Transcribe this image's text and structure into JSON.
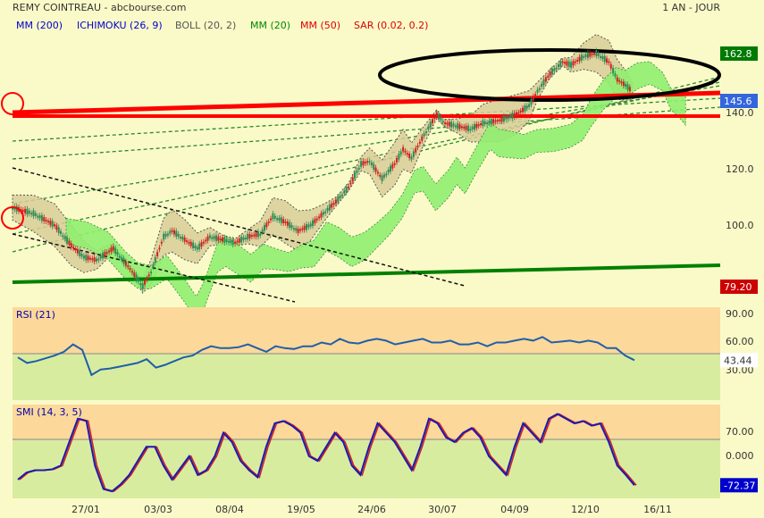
{
  "header": {
    "title": "REMY COINTREAU - abcbourse.com",
    "period": "1 AN - JOUR"
  },
  "legend": [
    {
      "label": "MM (200)",
      "color": "#0000cc"
    },
    {
      "label": "ICHIMOKU (26, 9)",
      "color": "#0000cc"
    },
    {
      "label": "BOLL (20, 2)",
      "color": "#555555"
    },
    {
      "label": "MM (20)",
      "color": "#008800"
    },
    {
      "label": "MM (50)",
      "color": "#dd0000"
    },
    {
      "label": "SAR (0.02, 0.2)",
      "color": "#dd0000"
    }
  ],
  "colors": {
    "background": "#fafac8",
    "overbought_zone": "#fcd89a",
    "oversold_zone": "#d8eca0",
    "cloud": "#90ee70",
    "bollinger_fill": "#d8cc98",
    "candle_up": "#2e8b57",
    "candle_down": "#cc2222",
    "rsi_line": "#1f5fa8",
    "smi_line": "#1a1ab0",
    "smi_signal": "#cc2222"
  },
  "chart_data": [
    {
      "type": "candlestick",
      "panel": "price",
      "ylim": [
        76,
        168
      ],
      "yticks": [
        "140.0",
        "120.0",
        "100.0"
      ],
      "x_labels": [
        "27/01",
        "03/03",
        "08/04",
        "19/05",
        "24/06",
        "30/07",
        "04/09",
        "12/10",
        "16/11"
      ],
      "price_badges": [
        {
          "value": "162.8",
          "color": "#007a00"
        },
        {
          "value": "145.6",
          "color": "#3366dd"
        },
        {
          "value": "79.20",
          "color": "#cc0000"
        }
      ],
      "close_path": [
        [
          0,
          109
        ],
        [
          10,
          107
        ],
        [
          20,
          103
        ],
        [
          28,
          96
        ],
        [
          34,
          92
        ],
        [
          40,
          91
        ],
        [
          48,
          95
        ],
        [
          56,
          88
        ],
        [
          62,
          82
        ],
        [
          66,
          87
        ],
        [
          72,
          99
        ],
        [
          76,
          101
        ],
        [
          82,
          98
        ],
        [
          88,
          95
        ],
        [
          94,
          99
        ],
        [
          100,
          98
        ],
        [
          106,
          97
        ],
        [
          112,
          99
        ],
        [
          118,
          100
        ],
        [
          124,
          106
        ],
        [
          130,
          104
        ],
        [
          136,
          101
        ],
        [
          142,
          103
        ],
        [
          148,
          107
        ],
        [
          154,
          111
        ],
        [
          160,
          116
        ],
        [
          166,
          124
        ],
        [
          170,
          125
        ],
        [
          176,
          119
        ],
        [
          182,
          124
        ],
        [
          186,
          129
        ],
        [
          190,
          126
        ],
        [
          196,
          134
        ],
        [
          202,
          141
        ],
        [
          206,
          138
        ],
        [
          212,
          137
        ],
        [
          218,
          136
        ],
        [
          224,
          138
        ],
        [
          232,
          139
        ],
        [
          240,
          141
        ],
        [
          246,
          144
        ],
        [
          250,
          149
        ],
        [
          256,
          155
        ],
        [
          262,
          159
        ],
        [
          266,
          158
        ],
        [
          272,
          161
        ],
        [
          278,
          162
        ],
        [
          284,
          159
        ],
        [
          288,
          153
        ],
        [
          292,
          151
        ],
        [
          295,
          149
        ]
      ]
    },
    {
      "type": "line",
      "panel": "rsi",
      "title": "RSI (21)",
      "ylim": [
        0,
        100
      ],
      "yticks": [
        "90.00",
        "60.00",
        "30.00"
      ],
      "last_value": "43.44",
      "values": [
        46,
        40,
        42,
        45,
        48,
        52,
        60,
        54,
        27,
        33,
        34,
        36,
        38,
        40,
        44,
        35,
        38,
        42,
        46,
        48,
        54,
        58,
        56,
        56,
        57,
        60,
        56,
        52,
        58,
        56,
        55,
        58,
        58,
        62,
        60,
        66,
        62,
        61,
        64,
        66,
        64,
        60,
        62,
        64,
        66,
        62,
        62,
        64,
        60,
        60,
        62,
        58,
        62,
        62,
        64,
        66,
        64,
        68,
        62,
        63,
        64,
        62,
        64,
        62,
        56,
        56,
        48,
        43
      ]
    },
    {
      "type": "line",
      "panel": "smi",
      "title": "SMI (14, 3, 5)",
      "ylim": [
        -100,
        100
      ],
      "yticks": [
        "70.00",
        "0.000"
      ],
      "last_value": "-72.37",
      "series": [
        {
          "values": [
            -60,
            -45,
            -40,
            -40,
            -38,
            -30,
            20,
            70,
            65,
            -30,
            -80,
            -85,
            -70,
            -50,
            -20,
            10,
            10,
            -30,
            -60,
            -35,
            -10,
            -50,
            -40,
            -10,
            40,
            20,
            -20,
            -40,
            -55,
            10,
            60,
            65,
            55,
            40,
            -10,
            -20,
            10,
            40,
            20,
            -30,
            -50,
            10,
            60,
            40,
            20,
            -10,
            -40,
            10,
            70,
            60,
            30,
            20,
            40,
            50,
            30,
            -10,
            -30,
            -50,
            10,
            60,
            40,
            20,
            70,
            80,
            70,
            60,
            65,
            55,
            60,
            20,
            -30,
            -50,
            -72
          ]
        }
      ]
    }
  ]
}
